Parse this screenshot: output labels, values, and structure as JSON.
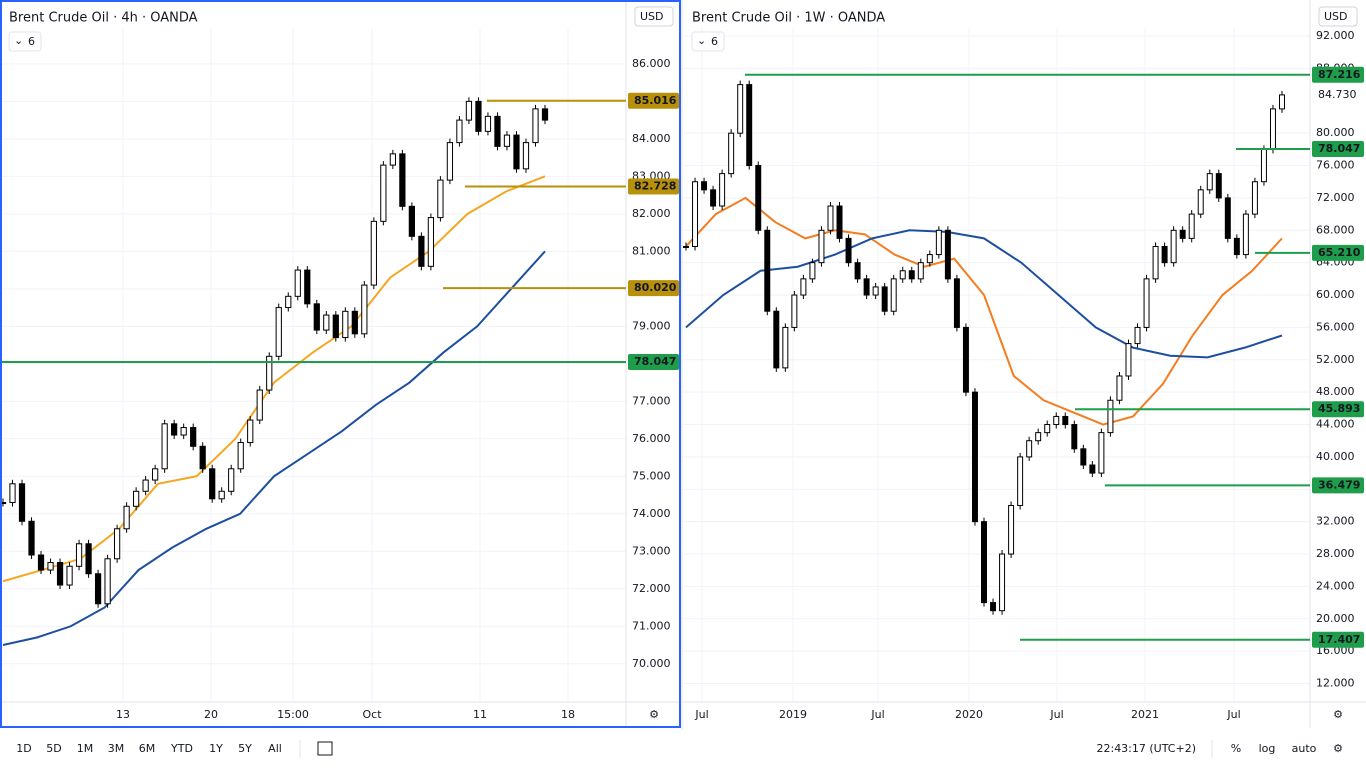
{
  "chart_data": [
    {
      "type": "candlestick",
      "title": "Brent Crude Oil · 4h · OANDA",
      "indicator": "6",
      "currency": "USD",
      "ylim": [
        69.3,
        86.85
      ],
      "yticks": [
        {
          "value": 70,
          "label": "70.000"
        },
        {
          "value": 71,
          "label": "71.000"
        },
        {
          "value": 72,
          "label": "72.000"
        },
        {
          "value": 73,
          "label": "73.000"
        },
        {
          "value": 74,
          "label": "74.000"
        },
        {
          "value": 75,
          "label": "75.000"
        },
        {
          "value": 76,
          "label": "76.000"
        },
        {
          "value": 77,
          "label": "77.000"
        },
        {
          "value": 78,
          "label": "78.000"
        },
        {
          "value": 79,
          "label": "79.000"
        },
        {
          "value": 80,
          "label": "80.000"
        },
        {
          "value": 81,
          "label": "81.000"
        },
        {
          "value": 82,
          "label": "82.000"
        },
        {
          "value": 83,
          "label": "83.000"
        },
        {
          "value": 84,
          "label": "84.000"
        },
        {
          "value": 85,
          "label": "85.000"
        },
        {
          "value": 86,
          "label": "86.000"
        }
      ],
      "xlabels": [
        "13",
        "20",
        "15:00",
        "Oct",
        "11",
        "18"
      ],
      "close": [
        74.3,
        74.8,
        73.8,
        72.9,
        72.5,
        72.7,
        72.1,
        72.6,
        73.2,
        72.4,
        71.6,
        72.8,
        73.6,
        74.2,
        74.6,
        74.9,
        75.2,
        76.4,
        76.1,
        76.3,
        75.8,
        75.2,
        74.4,
        74.6,
        75.2,
        75.9,
        76.5,
        77.3,
        78.2,
        79.5,
        79.8,
        80.5,
        79.6,
        78.9,
        79.3,
        78.7,
        79.4,
        78.8,
        80.1,
        81.8,
        83.3,
        83.6,
        82.2,
        81.4,
        80.6,
        81.9,
        82.9,
        83.9,
        84.5,
        85.0,
        84.2,
        84.6,
        83.8,
        84.1,
        83.2,
        83.9,
        84.8,
        84.5
      ],
      "series": [
        {
          "name": "MA short",
          "color": "#f5a623",
          "values": [
            72.2,
            72.5,
            72.8,
            73.6,
            74.8,
            75.0,
            76.0,
            77.5,
            78.3,
            79.0,
            80.3,
            81.0,
            82.0,
            82.6,
            83.0
          ]
        },
        {
          "name": "MA long",
          "color": "#1d4fa0",
          "values": [
            70.5,
            70.7,
            71.0,
            71.5,
            72.5,
            73.1,
            73.6,
            74.0,
            75.0,
            75.6,
            76.2,
            76.9,
            77.5,
            78.3,
            79.0,
            80.0,
            81.0
          ]
        }
      ],
      "levels": [
        {
          "value": 85.016,
          "label": "85.016",
          "color": "#b8900a"
        },
        {
          "value": 82.728,
          "label": "82.728",
          "color": "#b8900a"
        },
        {
          "value": 80.02,
          "label": "80.020",
          "color": "#b8900a"
        },
        {
          "value": 78.047,
          "label": "78.047",
          "color": "#1e9e4a"
        }
      ]
    },
    {
      "type": "candlestick",
      "title": "Brent Crude Oil · 1W · OANDA",
      "indicator": "6",
      "currency": "USD",
      "ylim": [
        11.2,
        92.5
      ],
      "yticks": [
        {
          "value": 12,
          "label": "12.000"
        },
        {
          "value": 16,
          "label": "16.000"
        },
        {
          "value": 20,
          "label": "20.000"
        },
        {
          "value": 24,
          "label": "24.000"
        },
        {
          "value": 28,
          "label": "28.000"
        },
        {
          "value": 32,
          "label": "32.000"
        },
        {
          "value": 36,
          "label": "36.000"
        },
        {
          "value": 40,
          "label": "40.000"
        },
        {
          "value": 44,
          "label": "44.000"
        },
        {
          "value": 48,
          "label": "48.000"
        },
        {
          "value": 52,
          "label": "52.000"
        },
        {
          "value": 56,
          "label": "56.000"
        },
        {
          "value": 60,
          "label": "60.000"
        },
        {
          "value": 64,
          "label": "64.000"
        },
        {
          "value": 68,
          "label": "68.000"
        },
        {
          "value": 72,
          "label": "72.000"
        },
        {
          "value": 76,
          "label": "76.000"
        },
        {
          "value": 80,
          "label": "80.000"
        },
        {
          "value": 88,
          "label": "88.000"
        },
        {
          "value": 92,
          "label": "92.000"
        }
      ],
      "xlabels": [
        "Jul",
        "2019",
        "Jul",
        "2020",
        "Jul",
        "2021",
        "Jul"
      ],
      "close": [
        66,
        74,
        73,
        71,
        75,
        80,
        86,
        76,
        68,
        58,
        51,
        56,
        60,
        62,
        64,
        68,
        71,
        67,
        64,
        62,
        60,
        61,
        58,
        62,
        63,
        62,
        64,
        65,
        68,
        62,
        56,
        48,
        32,
        22,
        21,
        28,
        34,
        40,
        42,
        43,
        44,
        45,
        44,
        41,
        39,
        38,
        43,
        47,
        50,
        54,
        56,
        62,
        66,
        64,
        68,
        67,
        70,
        73,
        75,
        72,
        67,
        65,
        70,
        74,
        78,
        83,
        84.73
      ],
      "series": [
        {
          "name": "MA short",
          "color": "#f57c1f",
          "values": [
            66,
            70,
            72,
            69,
            67,
            68,
            67.5,
            65,
            63.5,
            64.5,
            60,
            50,
            47,
            45.5,
            44,
            45,
            49,
            55,
            60,
            63,
            67
          ]
        },
        {
          "name": "MA long",
          "color": "#1d4fa0",
          "values": [
            56,
            60,
            63,
            63.5,
            65,
            67,
            68,
            67.8,
            67,
            64,
            60,
            56,
            53.5,
            52.5,
            52.3,
            53.5,
            55
          ]
        }
      ],
      "last": {
        "value": 84.73,
        "label": "84.730"
      },
      "levels": [
        {
          "value": 87.216,
          "label": "87.216",
          "color": "#1e9e4a"
        },
        {
          "value": 78.047,
          "label": "78.047",
          "color": "#1e9e4a"
        },
        {
          "value": 65.21,
          "label": "65.210",
          "color": "#1e9e4a"
        },
        {
          "value": 45.893,
          "label": "45.893",
          "color": "#1e9e4a"
        },
        {
          "value": 36.479,
          "label": "36.479",
          "color": "#1e9e4a"
        },
        {
          "value": 17.407,
          "label": "17.407",
          "color": "#1e9e4a"
        }
      ]
    }
  ],
  "toolbar": {
    "ranges": [
      "1D",
      "5D",
      "1M",
      "3M",
      "6M",
      "YTD",
      "1Y",
      "5Y",
      "All"
    ],
    "clock": "22:43:17 (UTC+2)",
    "percent": "%",
    "log": "log",
    "auto": "auto"
  }
}
